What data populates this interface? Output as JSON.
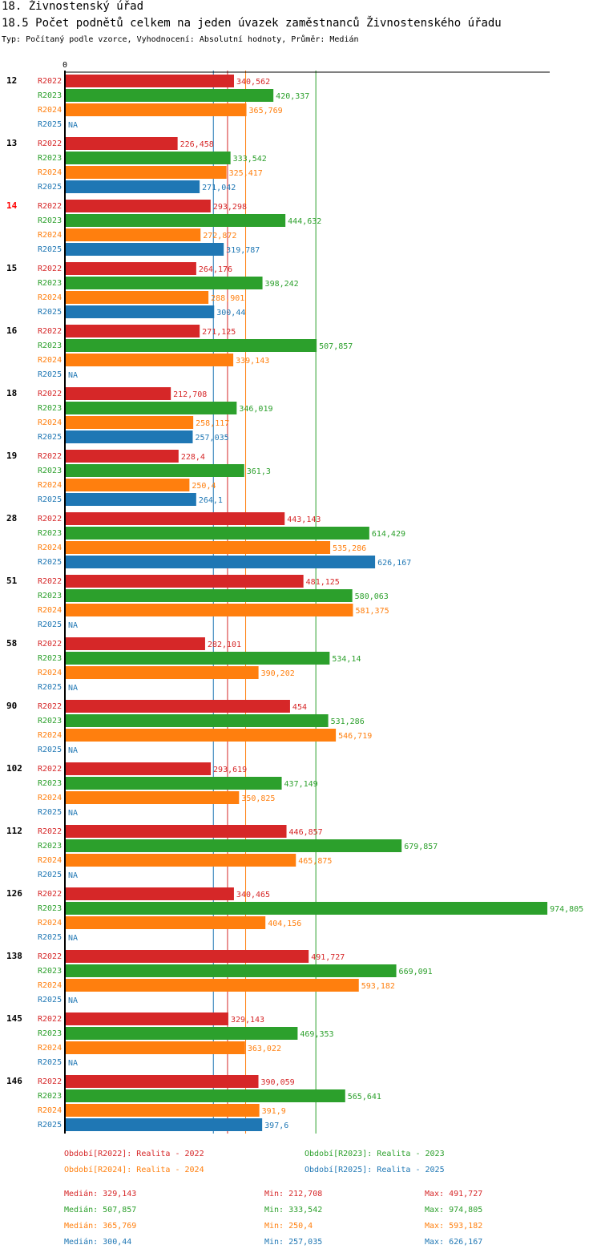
{
  "header": {
    "title": "18. Živnostenský úřad",
    "subtitle": "18.5 Počet podnětů celkem na jeden úvazek zaměstnanců Živnostenského úřadu",
    "info": "Typ: Počítaný podle vzorce, Vyhodnocení: Absolutní hodnoty, Průměr: Medián"
  },
  "chart_data": {
    "type": "bar",
    "orientation": "horizontal",
    "axis_zero_label": "0",
    "xlim": [
      0,
      974.805
    ],
    "highlight_group": "14",
    "groups": [
      "12",
      "13",
      "14",
      "15",
      "16",
      "18",
      "19",
      "28",
      "51",
      "58",
      "90",
      "102",
      "112",
      "126",
      "138",
      "145",
      "146"
    ],
    "series": [
      {
        "name": "R2022",
        "color": "#d62728",
        "values": [
          340.562,
          226.458,
          293.298,
          264.176,
          271.125,
          212.708,
          228.4,
          443.143,
          481.125,
          282.101,
          454,
          293.619,
          446.857,
          340.465,
          491.727,
          329.143,
          390.059
        ],
        "labels": [
          "340,562",
          "226,458",
          "293,298",
          "264,176",
          "271,125",
          "212,708",
          "228,4",
          "443,143",
          "481,125",
          "282,101",
          "454",
          "293,619",
          "446,857",
          "340,465",
          "491,727",
          "329,143",
          "390,059"
        ]
      },
      {
        "name": "R2023",
        "color": "#2ca02c",
        "values": [
          420.337,
          333.542,
          444.632,
          398.242,
          507.857,
          346.019,
          361.3,
          614.429,
          580.063,
          534.14,
          531.286,
          437.149,
          679.857,
          974.805,
          669.091,
          469.353,
          565.641
        ],
        "labels": [
          "420,337",
          "333,542",
          "444,632",
          "398,242",
          "507,857",
          "346,019",
          "361,3",
          "614,429",
          "580,063",
          "534,14",
          "531,286",
          "437,149",
          "679,857",
          "974,805",
          "669,091",
          "469,353",
          "565,641"
        ]
      },
      {
        "name": "R2024",
        "color": "#ff7f0e",
        "values": [
          365.769,
          325.417,
          272.872,
          288.901,
          339.143,
          258.117,
          250.4,
          535.286,
          581.375,
          390.202,
          546.719,
          350.825,
          465.875,
          404.156,
          593.182,
          363.022,
          391.9
        ],
        "labels": [
          "365,769",
          "325,417",
          "272,872",
          "288,901",
          "339,143",
          "258,117",
          "250,4",
          "535,286",
          "581,375",
          "390,202",
          "546,719",
          "350,825",
          "465,875",
          "404,156",
          "593,182",
          "363,022",
          "391,9"
        ]
      },
      {
        "name": "R2025",
        "color": "#1f77b4",
        "values": [
          null,
          271.042,
          319.787,
          300.44,
          null,
          257.035,
          264.1,
          626.167,
          null,
          null,
          null,
          null,
          null,
          null,
          null,
          null,
          397.6
        ],
        "labels": [
          "NA",
          "271,042",
          "319,787",
          "300,44",
          "NA",
          "257,035",
          "264,1",
          "626,167",
          "NA",
          "NA",
          "NA",
          "NA",
          "NA",
          "NA",
          "NA",
          "NA",
          "397,6"
        ]
      }
    ],
    "median_lines": [
      {
        "series": "R2022",
        "value": 329.143
      },
      {
        "series": "R2023",
        "value": 507.857
      },
      {
        "series": "R2024",
        "value": 365.769
      },
      {
        "series": "R2025",
        "value": 300.44
      }
    ]
  },
  "legend": [
    {
      "text": "Období[R2022]: Realita - 2022",
      "color": "#d62728"
    },
    {
      "text": "Období[R2023]: Realita - 2023",
      "color": "#2ca02c"
    },
    {
      "text": "Období[R2024]: Realita - 2024",
      "color": "#ff7f0e"
    },
    {
      "text": "Období[R2025]: Realita - 2025",
      "color": "#1f77b4"
    }
  ],
  "stats": [
    {
      "color": "#d62728",
      "median": "Medián: 329,143",
      "min": "Min: 212,708",
      "max": "Max: 491,727"
    },
    {
      "color": "#2ca02c",
      "median": "Medián: 507,857",
      "min": "Min: 333,542",
      "max": "Max: 974,805"
    },
    {
      "color": "#ff7f0e",
      "median": "Medián: 365,769",
      "min": "Min: 250,4",
      "max": "Max: 593,182"
    },
    {
      "color": "#1f77b4",
      "median": "Medián: 300,44",
      "min": "Min: 257,035",
      "max": "Max: 626,167"
    }
  ]
}
